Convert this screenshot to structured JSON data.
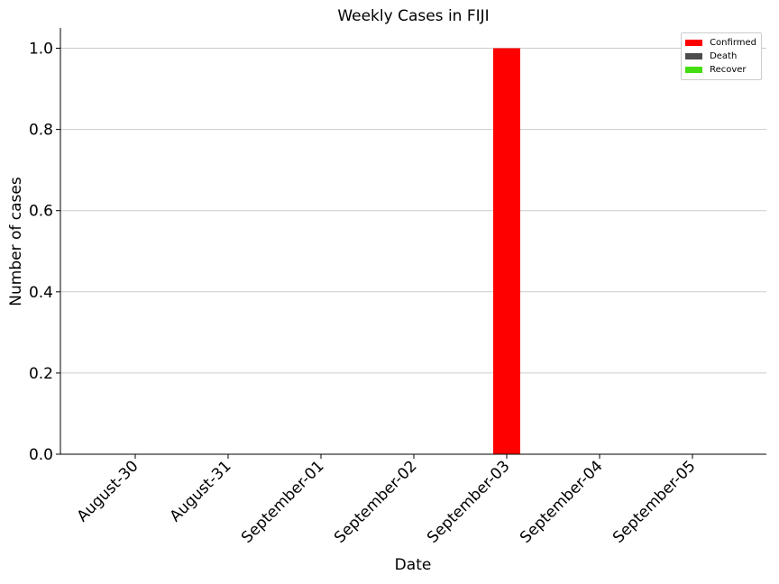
{
  "chart_data": {
    "type": "bar",
    "title": "Weekly Cases in FIJI",
    "xlabel": "Date",
    "ylabel": "Number of cases",
    "categories": [
      "August-30",
      "August-31",
      "September-01",
      "September-02",
      "September-03",
      "September-04",
      "September-05"
    ],
    "series": [
      {
        "name": "Confirmed",
        "color": "#ff0000",
        "values": [
          0,
          0,
          0,
          0,
          1,
          0,
          0
        ]
      },
      {
        "name": "Death",
        "color": "#4d4d4d",
        "values": [
          0,
          0,
          0,
          0,
          0,
          0,
          0
        ]
      },
      {
        "name": "Recover",
        "color": "#44dd11",
        "values": [
          0,
          0,
          0,
          0,
          0,
          0,
          0
        ]
      }
    ],
    "ylim": [
      0,
      1.05
    ],
    "yticks": [
      "0.0",
      "0.2",
      "0.4",
      "0.6",
      "0.8",
      "1.0"
    ],
    "grid": "y",
    "legend_position": "top-right"
  }
}
